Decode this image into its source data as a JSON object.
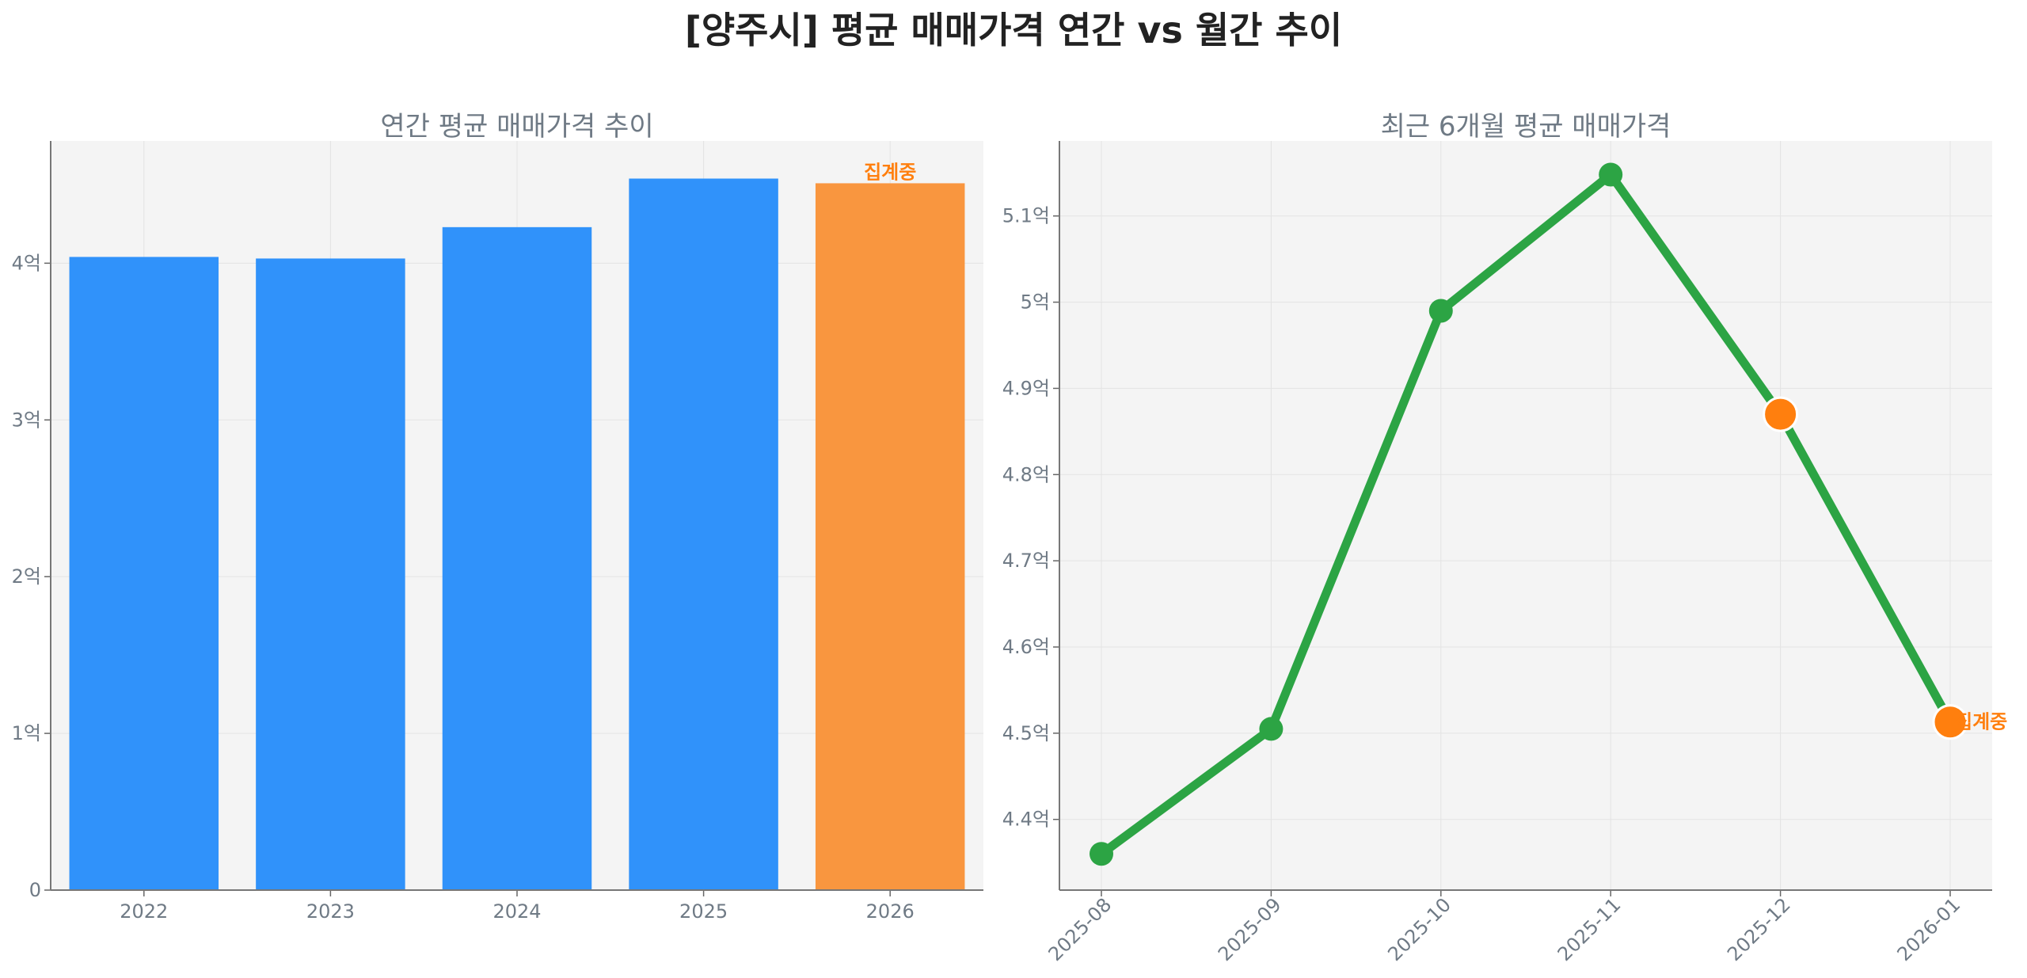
{
  "title": "[양주시] 평균 매매가격 연간 vs 월간 추이",
  "colors": {
    "bar": "#3092fa",
    "highlight": "#f9963f",
    "line": "#2ca444",
    "marker_current": "#ff7f0e",
    "axis_text": "#6f7a85",
    "plot_bg": "#f4f4f4"
  },
  "chart_data": [
    {
      "type": "bar",
      "title": "연간 평균 매매가격 추이",
      "categories": [
        "2022",
        "2023",
        "2024",
        "2025",
        "2026"
      ],
      "values": [
        4.04,
        4.03,
        4.23,
        4.54,
        4.51
      ],
      "highlight_index": 4,
      "annotation": "집계중",
      "ylim": [
        0,
        4.78
      ],
      "yticks": [
        0,
        1,
        2,
        3,
        4
      ],
      "ytick_labels": [
        "0",
        "1억",
        "2억",
        "3억",
        "4억"
      ],
      "grid": true
    },
    {
      "type": "line",
      "title": "최근 6개월 평균 매매가격",
      "categories": [
        "2025-08",
        "2025-09",
        "2025-10",
        "2025-11",
        "2025-12",
        "2026-01"
      ],
      "values": [
        4.36,
        4.505,
        4.99,
        5.148,
        4.87,
        4.513
      ],
      "highlight_indices": [
        4,
        5
      ],
      "annotation": "집계중",
      "ylim": [
        4.318,
        5.187
      ],
      "yticks": [
        4.4,
        4.5,
        4.6,
        4.7,
        4.8,
        4.9,
        5.0,
        5.1
      ],
      "ytick_labels": [
        "4.4억",
        "4.5억",
        "4.6억",
        "4.7억",
        "4.8억",
        "4.9억",
        "5억",
        "5.1억"
      ],
      "grid": true
    }
  ]
}
